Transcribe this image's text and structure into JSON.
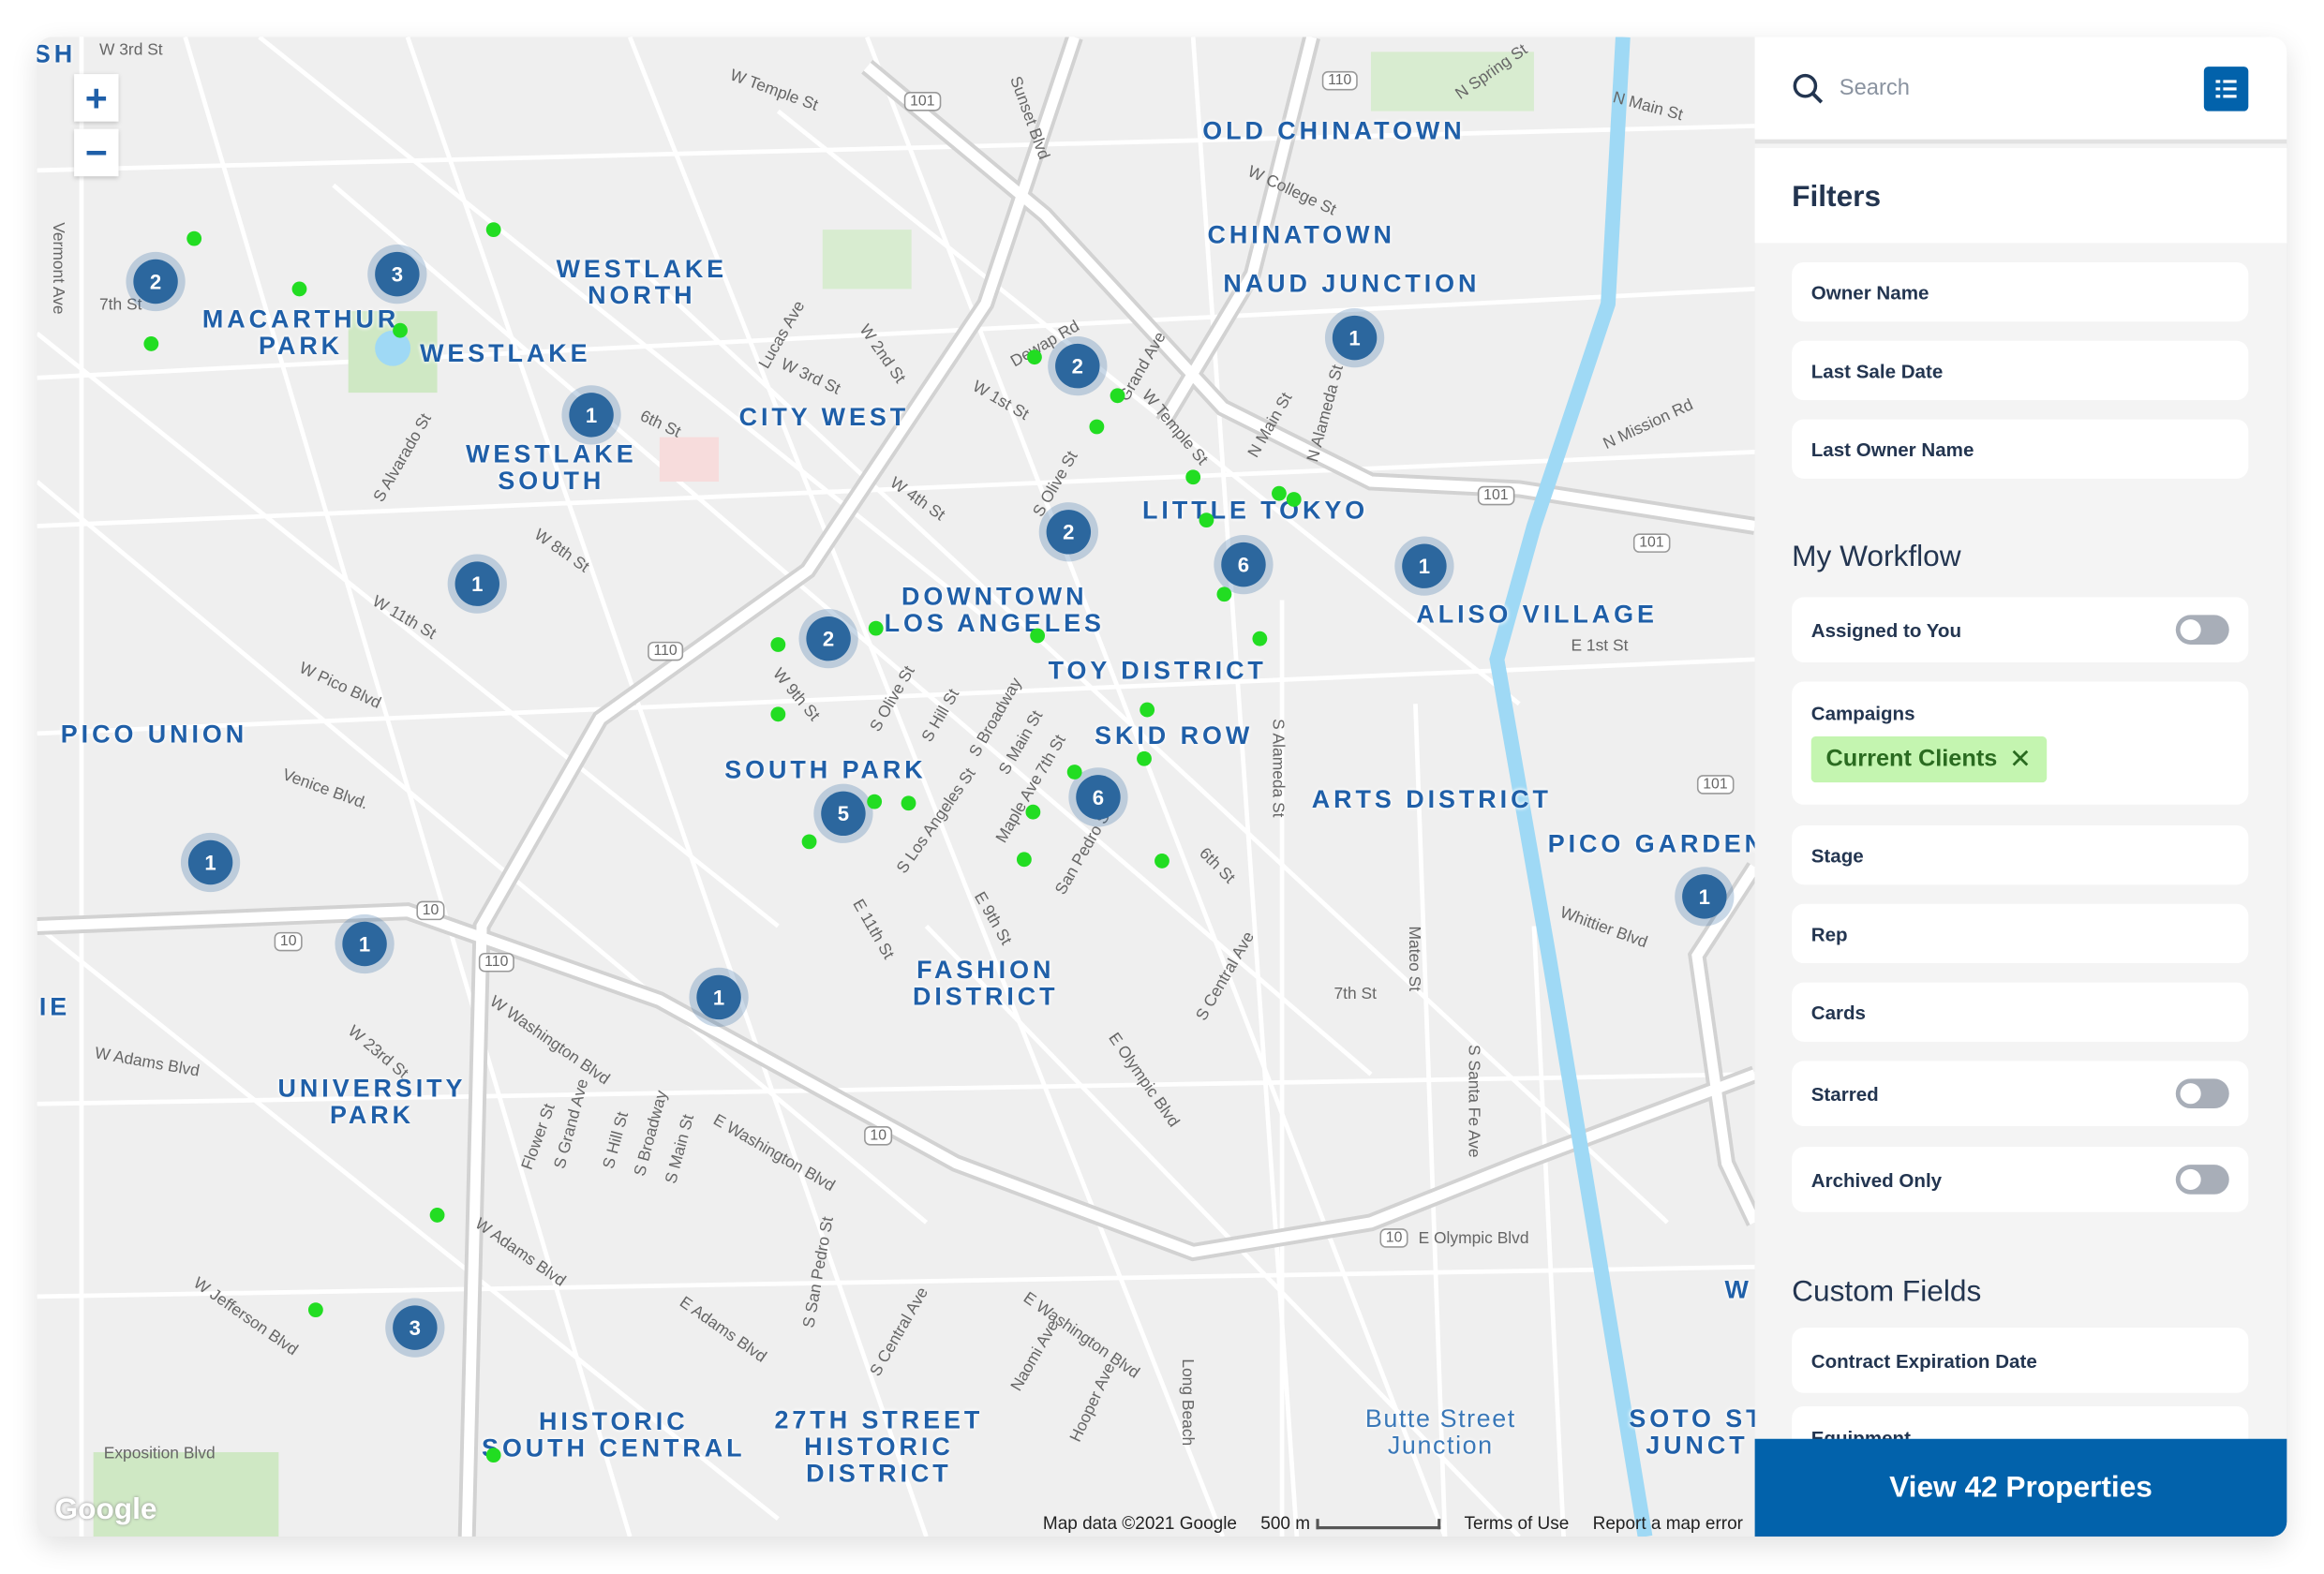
{
  "map": {
    "zoom_in": "+",
    "zoom_out": "−",
    "neighborhoods": [
      "OLD CHINATOWN",
      "CHINATOWN",
      "NAUD JUNCTION",
      "WESTLAKE\nNORTH",
      "MACARTHUR\nPARK",
      "WESTLAKE",
      "CITY WEST",
      "WESTLAKE\nSOUTH",
      "LITTLE TOKYO",
      "ALISO VILLAGE",
      "DOWNTOWN\nLOS ANGELES",
      "TOY DISTRICT",
      "PICO UNION",
      "SKID ROW",
      "SOUTH PARK",
      "ARTS DISTRICT",
      "PICO GARDENS",
      "FASHION\nDISTRICT",
      "UNIVERSITY\nPARK",
      "HISTORIC\nSOUTH CENTRAL",
      "27TH STREET\nHISTORIC\nDISTRICT",
      "Butte Street\nJunction",
      "SOTO ST\nJUNCT",
      "SH",
      "IE",
      "W"
    ],
    "streets": [
      "W 3rd St",
      "W Temple St",
      "Sunset Blvd",
      "N Spring St",
      "N Main St",
      "W College St",
      "Vermont Ave",
      "7th St",
      "Lucas Ave",
      "W 2nd St",
      "W 3rd St",
      "Dewap Rd",
      "Grand Ave",
      "W 1st St",
      "W Temple St",
      "N Main St",
      "N Alameda St",
      "N Mission Rd",
      "S Alvarado St",
      "6th St",
      "W 4th St",
      "S Olive St",
      "W 8th St",
      "W 11th St",
      "W Pico Blvd",
      "Venice Blvd.",
      "S Hill St",
      "S Broadway",
      "S Main St",
      "E 1st St",
      "S Alameda St",
      "W 9th St",
      "S Olive St",
      "7th St",
      "S Los Angeles St",
      "Maple Ave",
      "San Pedro St",
      "E 9th St",
      "6th St",
      "Whittier Blvd",
      "E 11th St",
      "S Central Ave",
      "Mateo St",
      "7th St",
      "W Washington Blvd",
      "W 23rd St",
      "W Adams Blvd",
      "Flower St",
      "S Grand Ave",
      "S Hill St",
      "S Broadway",
      "S Main St",
      "E Washington Blvd",
      "E Olympic Blvd",
      "S Santa Fe Ave",
      "S San Pedro St",
      "W Adams Blvd",
      "W Jefferson Blvd",
      "E Adams Blvd",
      "S Central Ave",
      "Naomi Ave",
      "E Washington Blvd",
      "Hooper Ave",
      "Long Beach",
      "Exposition Blvd",
      "E Olympic Blvd"
    ],
    "shields": [
      "101",
      "110",
      "101",
      "101",
      "101",
      "110",
      "10",
      "10",
      "110",
      "10",
      "10",
      "101"
    ],
    "clusters": [
      2,
      3,
      1,
      1,
      2,
      2,
      2,
      6,
      1,
      1,
      5,
      6,
      1,
      1,
      1,
      3,
      1
    ],
    "attribution": "Map data ©2021 Google",
    "scale_label": "500 m",
    "terms": "Terms of Use",
    "report": "Report a map error",
    "logo": "Google",
    "colors": {
      "cluster": "#2c679e",
      "marker": "#22dd22",
      "water": "#9fd9f5",
      "label": "#1f5fa8"
    }
  },
  "sidebar": {
    "search_placeholder": "Search",
    "filters_title": "Filters",
    "fields": [
      "Owner Name",
      "Last Sale Date",
      "Last Owner Name"
    ],
    "workflow_title": "My Workflow",
    "assigned": {
      "label": "Assigned to You",
      "on": false
    },
    "campaigns": {
      "label": "Campaigns",
      "chip": "Current Clients"
    },
    "workflow_fields": [
      "Stage",
      "Rep",
      "Cards"
    ],
    "starred": {
      "label": "Starred",
      "on": false
    },
    "archived": {
      "label": "Archived Only",
      "on": false
    },
    "custom_title": "Custom Fields",
    "custom_fields": [
      "Contract Expiration Date",
      "Equipment"
    ],
    "view_button": "View 42 Properties",
    "accent": "#0262ab"
  }
}
